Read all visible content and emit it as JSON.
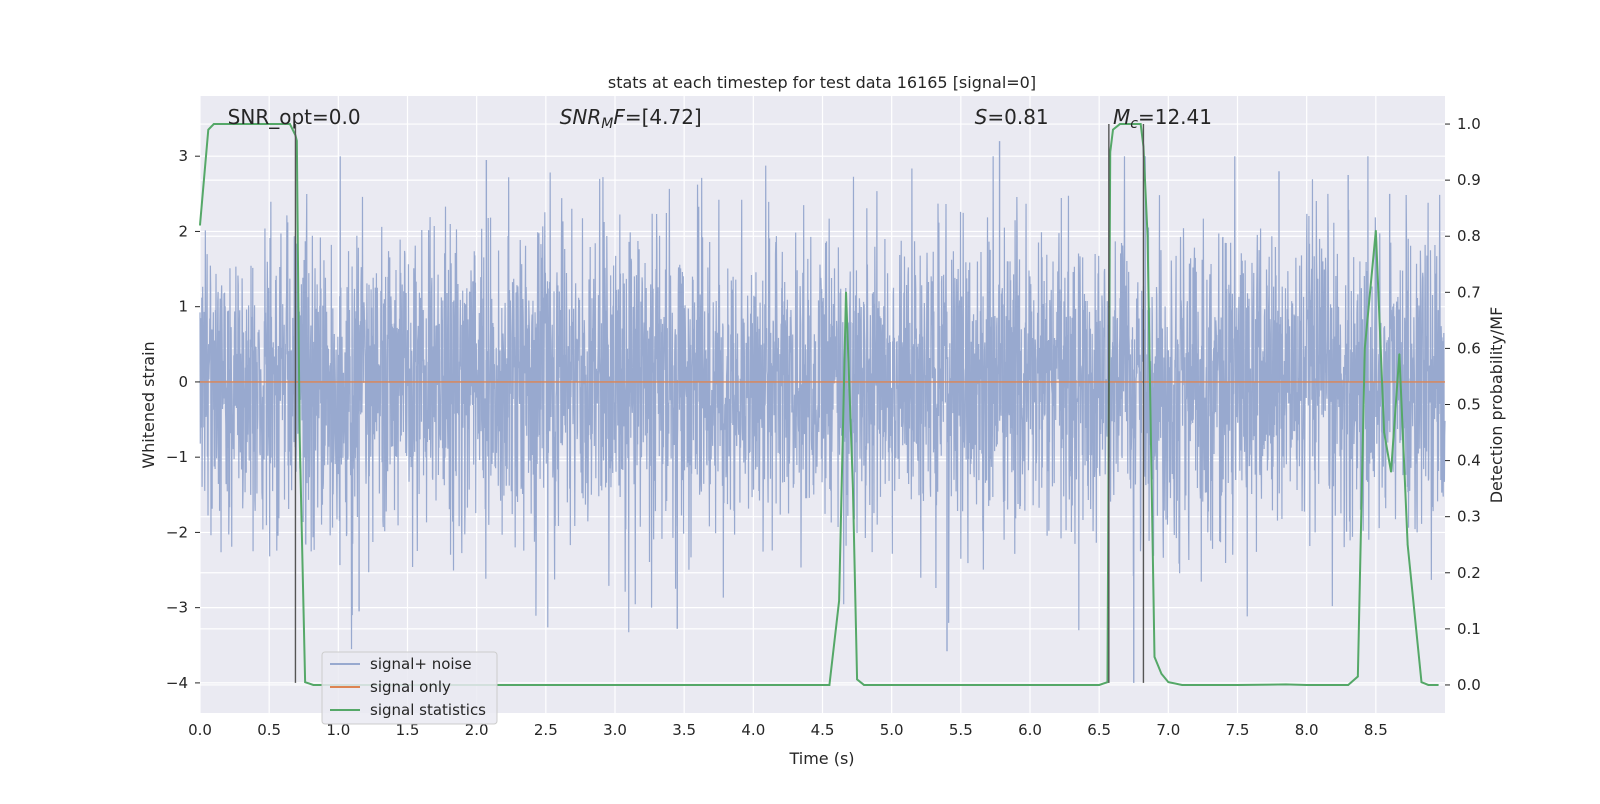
{
  "chart_data": {
    "type": "line",
    "title": "stats at each timestep for test data 16165 [signal=0]",
    "xlabel": "Time (s)",
    "ylabel": "Whitened strain",
    "y2label": "Detection probability/MF",
    "xlim": [
      0.0,
      9.0
    ],
    "ylim": [
      -4.4,
      3.8
    ],
    "y2lim": [
      -0.05,
      1.05
    ],
    "x_ticks": [
      0.0,
      0.5,
      1.0,
      1.5,
      2.0,
      2.5,
      3.0,
      3.5,
      4.0,
      4.5,
      5.0,
      5.5,
      6.0,
      6.5,
      7.0,
      7.5,
      8.0,
      8.5
    ],
    "x_tick_labels": [
      "0.0",
      "0.5",
      "1.0",
      "1.5",
      "2.0",
      "2.5",
      "3.0",
      "3.5",
      "4.0",
      "4.5",
      "5.0",
      "5.5",
      "6.0",
      "6.5",
      "7.0",
      "7.5",
      "8.0",
      "8.5"
    ],
    "y_ticks": [
      -4,
      -3,
      -2,
      -1,
      0,
      1,
      2,
      3
    ],
    "y_tick_labels": [
      "−4",
      "−3",
      "−2",
      "−1",
      "0",
      "1",
      "2",
      "3"
    ],
    "y2_ticks": [
      0.0,
      0.1,
      0.2,
      0.3,
      0.4,
      0.5,
      0.6,
      0.7,
      0.8,
      0.9,
      1.0
    ],
    "y2_tick_labels": [
      "0.0",
      "0.1",
      "0.2",
      "0.3",
      "0.4",
      "0.5",
      "0.6",
      "0.7",
      "0.8",
      "0.9",
      "1.0"
    ],
    "grid": true,
    "legend_position": "lower-left",
    "colors": {
      "background": "#eaeaf2",
      "grid": "#ffffff",
      "noise": "#98a9cf",
      "signal": "#dd8452",
      "statistics": "#55a868",
      "vline": "#555555"
    },
    "annotations": [
      {
        "text": "SNR_opt=0.0",
        "x": 0.2
      },
      {
        "text": "SNR",
        "sub": "M",
        "after": "F=[4.72]",
        "x": 2.6
      },
      {
        "text": "S",
        "after": "=0.81",
        "x": 5.6
      },
      {
        "text": "M",
        "sub": "c",
        "after": "=12.41",
        "x": 6.6
      }
    ],
    "series": [
      {
        "name": "signal+ noise",
        "kind": "noise",
        "axis": "left",
        "x_range": [
          0.0,
          9.0
        ],
        "typical_amplitude": 1.6,
        "min": -3.6,
        "max": 3.0,
        "spikes": [
          {
            "x": 3.45,
            "y": -3.28
          },
          {
            "x": 5.4,
            "y": -3.58
          },
          {
            "x": 1.1,
            "y": -3.1
          },
          {
            "x": 1.15,
            "y": -3.05
          },
          {
            "x": 2.07,
            "y": 2.95
          },
          {
            "x": 5.78,
            "y": 3.2
          },
          {
            "x": 6.75,
            "y": -4.0
          },
          {
            "x": 8.3,
            "y": 2.75
          },
          {
            "x": 8.6,
            "y": 2.5
          },
          {
            "x": 7.8,
            "y": 2.8
          }
        ]
      },
      {
        "name": "signal only",
        "axis": "left",
        "x": [
          0.0,
          9.0
        ],
        "y": [
          0.0,
          0.0
        ]
      },
      {
        "name": "signal statistics",
        "axis": "right",
        "x": [
          0.0,
          0.06,
          0.1,
          0.15,
          0.3,
          0.5,
          0.6,
          0.65,
          0.69,
          0.7,
          0.72,
          0.76,
          0.82,
          0.9,
          1.5,
          2.5,
          3.5,
          4.0,
          4.5,
          4.55,
          4.62,
          4.67,
          4.72,
          4.75,
          4.8,
          5.0,
          6.0,
          6.5,
          6.56,
          6.57,
          6.58,
          6.6,
          6.65,
          6.7,
          6.75,
          6.8,
          6.82,
          6.85,
          6.9,
          6.95,
          7.0,
          7.1,
          7.5,
          7.85,
          8.0,
          8.3,
          8.37,
          8.42,
          8.5,
          8.56,
          8.61,
          8.67,
          8.73,
          8.83,
          8.88,
          8.95
        ],
        "y": [
          0.82,
          0.99,
          1.0,
          1.0,
          1.0,
          1.0,
          1.0,
          1.0,
          0.98,
          0.97,
          0.45,
          0.005,
          0.0,
          0.0,
          0.0,
          0.0,
          0.0,
          0.0,
          0.0,
          0.0,
          0.15,
          0.7,
          0.35,
          0.01,
          0.0,
          0.0,
          0.0,
          0.0,
          0.005,
          0.5,
          0.95,
          0.99,
          1.0,
          1.0,
          1.0,
          1.0,
          0.96,
          0.8,
          0.05,
          0.02,
          0.005,
          0.0,
          0.0,
          0.001,
          0.0,
          0.0,
          0.015,
          0.6,
          0.81,
          0.45,
          0.38,
          0.59,
          0.25,
          0.005,
          0.0,
          0.0
        ]
      }
    ],
    "vertical_markers": [
      0.69,
      6.57,
      6.82
    ]
  }
}
